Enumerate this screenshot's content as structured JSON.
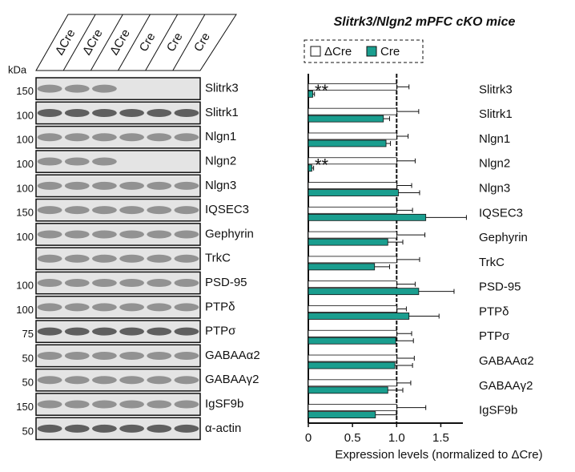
{
  "chart_data": {
    "type": "hbar",
    "title": "Slitrk3/Nlgn2 mPFC cKO mice",
    "xlabel": "Expression levels (normalized to ΔCre)",
    "categories": [
      "Slitrk3",
      "Slitrk1",
      "Nlgn1",
      "Nlgn2",
      "Nlgn3",
      "IQSEC3",
      "Gephyrin",
      "TrkC",
      "PSD-95",
      "PTPδ",
      "PTPσ",
      "GABAAα2",
      "GABAAγ2",
      "IgSF9b"
    ],
    "series": [
      {
        "name": "ΔCre",
        "color": "#ffffff",
        "values": [
          1,
          1,
          1,
          1,
          1,
          1,
          1,
          1,
          1,
          1,
          1,
          1,
          1,
          1
        ],
        "errors": [
          0.14,
          0.25,
          0.13,
          0.21,
          0.17,
          0.18,
          0.32,
          0.26,
          0.21,
          0.11,
          0.17,
          0.2,
          0.16,
          0.33
        ]
      },
      {
        "name": "Cre",
        "color": "#1a9e8f",
        "values": [
          0.05,
          0.85,
          0.88,
          0.04,
          1.02,
          1.33,
          0.9,
          0.75,
          1.25,
          1.14,
          0.99,
          0.98,
          0.9,
          0.76
        ],
        "errors": [
          0.02,
          0.07,
          0.05,
          0.02,
          0.24,
          0.46,
          0.17,
          0.17,
          0.4,
          0.34,
          0.2,
          0.2,
          0.17,
          0.24
        ]
      }
    ],
    "significance": [
      "**",
      null,
      null,
      "**",
      null,
      null,
      null,
      null,
      null,
      null,
      null,
      null,
      null,
      null
    ],
    "xlim": [
      0,
      1.75
    ],
    "xticks": [
      0,
      0.5,
      {
        "value": 1,
        "label": "1.0"
      },
      1.5
    ],
    "reference_line": 1,
    "legend": "top"
  },
  "blot": {
    "unit": "kDa",
    "lanes": [
      "ΔCre",
      "ΔCre",
      "ΔCre",
      "Cre",
      "Cre",
      "Cre"
    ],
    "rows": [
      {
        "label": "Slitrk3",
        "marker": "150"
      },
      {
        "label": "Slitrk1",
        "marker": "100"
      },
      {
        "label": "Nlgn1",
        "marker": "100"
      },
      {
        "label": "Nlgn2",
        "marker": "100"
      },
      {
        "label": "Nlgn3",
        "marker": "100"
      },
      {
        "label": "IQSEC3",
        "marker": "150"
      },
      {
        "label": "Gephyrin",
        "marker": "100"
      },
      {
        "label": "TrkC",
        "marker": null
      },
      {
        "label": "PSD-95",
        "marker": "100"
      },
      {
        "label": "PTPδ",
        "marker": "100"
      },
      {
        "label": "PTPσ",
        "marker": "75"
      },
      {
        "label": "GABAAα2",
        "marker": "50"
      },
      {
        "label": "GABAAγ2",
        "marker": "50"
      },
      {
        "label": "IgSF9b",
        "marker": "150"
      },
      {
        "label": "α-actin",
        "marker": "50"
      }
    ]
  }
}
